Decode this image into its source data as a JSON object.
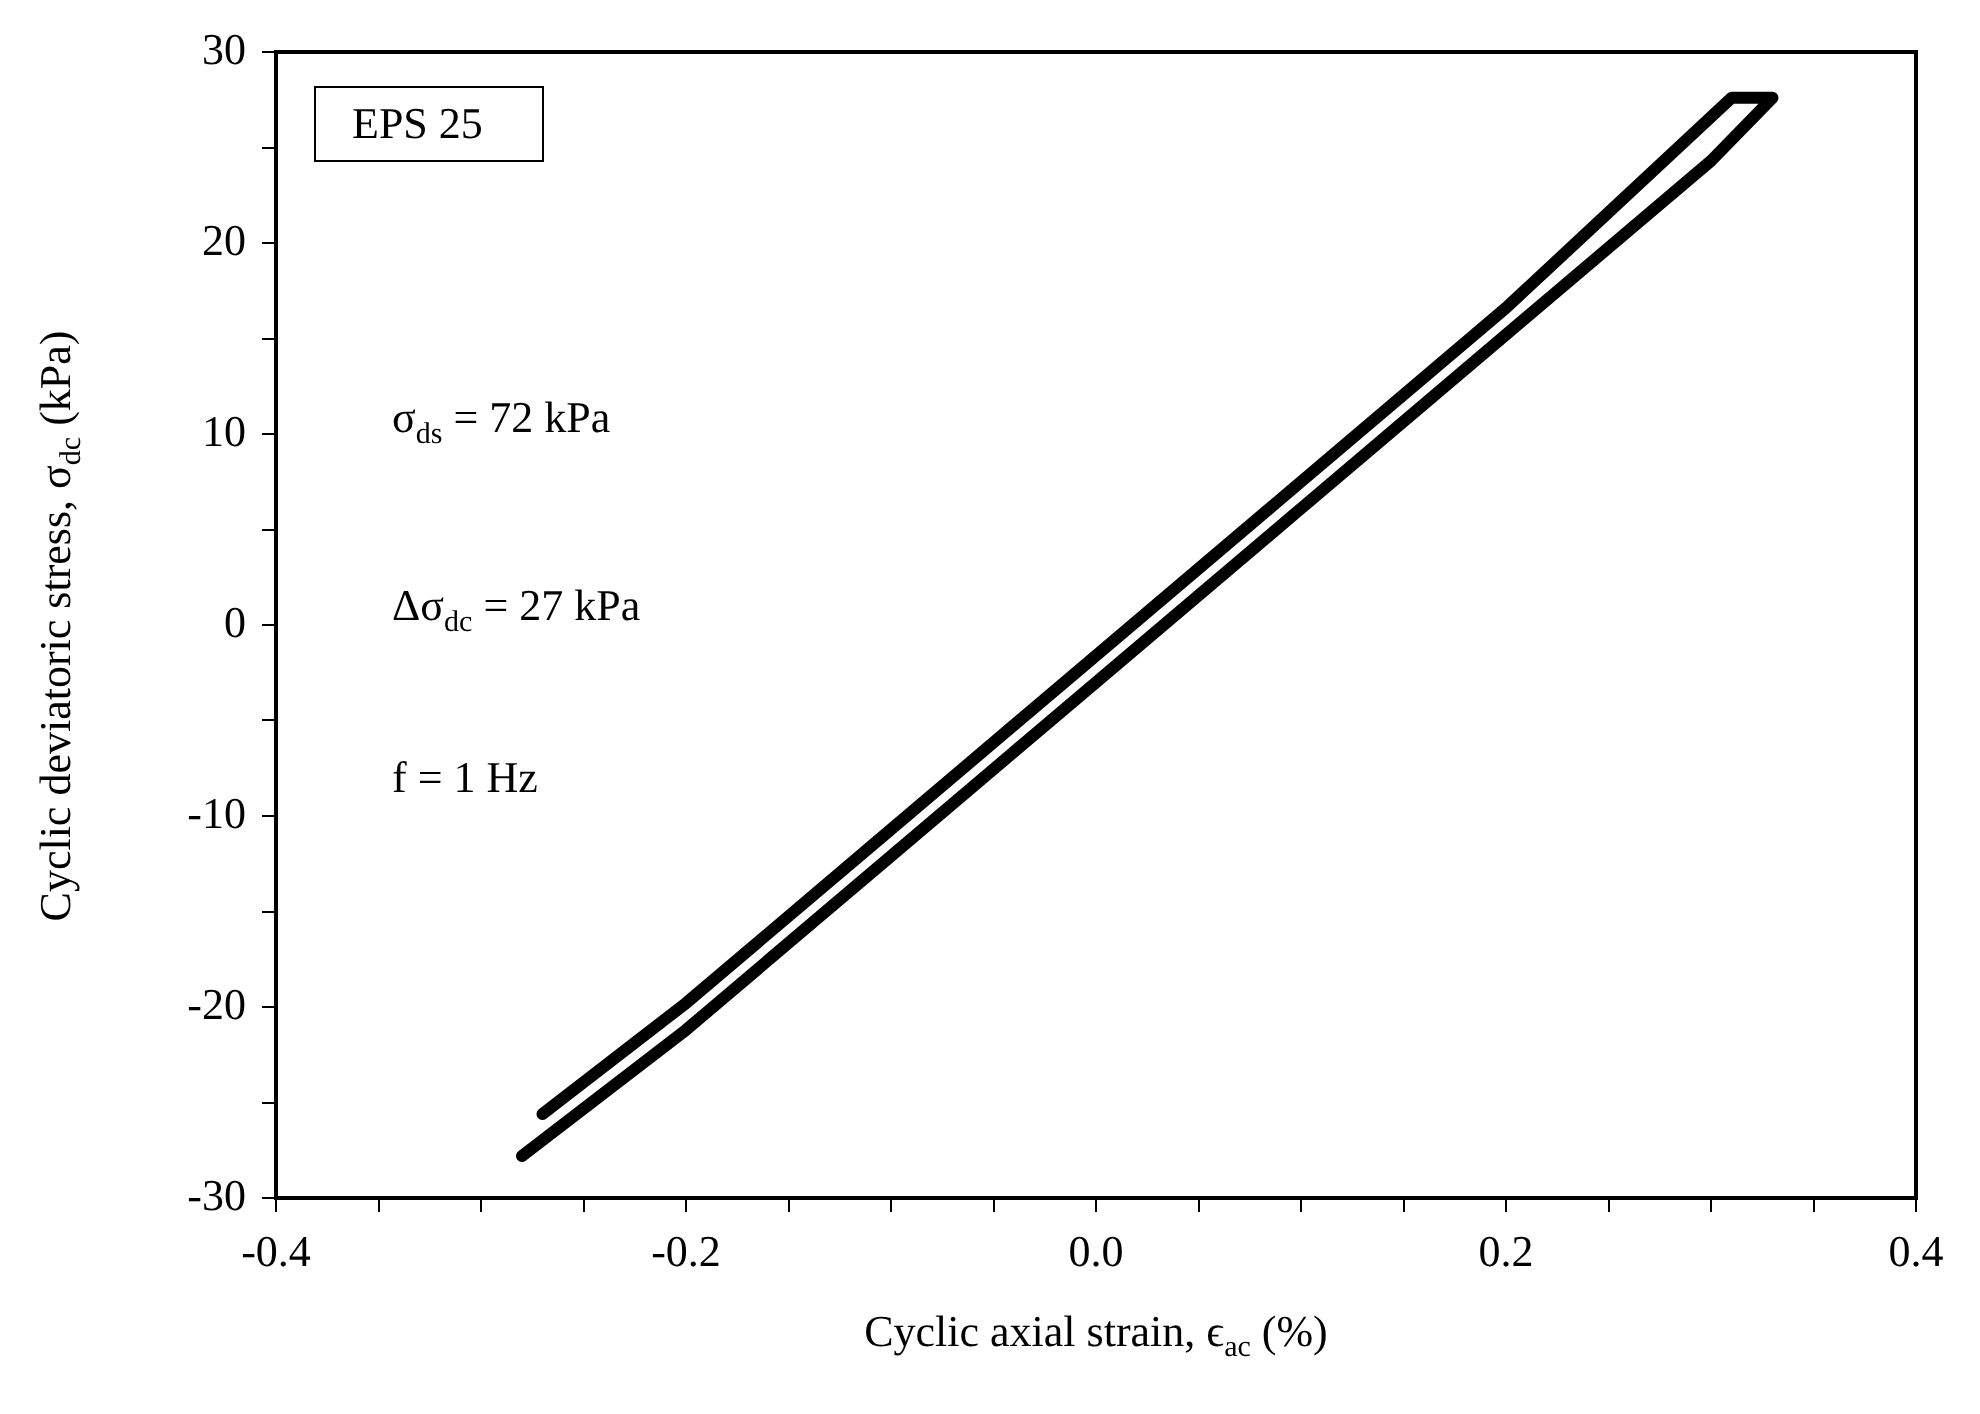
{
  "chart_data": {
    "type": "line",
    "xlabel": "Cyclic axial strain, ϵ$_{ac}$ (%)",
    "ylabel": "Cyclic deviatoric stress, σ$_{dc}$ (kPa)",
    "annotations": [
      "EPS 25",
      "σ$_{ds}$ = 72 kPa",
      "Δσ$_{dc}$ = 27 kPa",
      "f = 1 Hz"
    ],
    "series": [
      {
        "color": "#000000",
        "values": [
          -27.8,
          -21.2,
          -12.1,
          -3.0,
          6.1,
          15.2,
          24.3,
          27.6,
          27.6,
          16.6,
          7.5,
          -1.6,
          -10.7,
          -19.8,
          -25.6
        ]
      }
    ],
    "x": [
      -0.28,
      -0.2,
      -0.1,
      0,
      0.1,
      0.2,
      0.3,
      0.33,
      0.31,
      0.2,
      0.1,
      0,
      -0.1,
      -0.2,
      -0.27
    ],
    "xlim": [
      -0.4,
      0.4
    ],
    "xticks": [
      -0.4,
      {
        "value": -0.35,
        "label": null
      },
      {
        "value": -0.3,
        "label": null
      },
      {
        "value": -0.25,
        "label": null
      },
      -0.2,
      {
        "value": -0.15,
        "label": null
      },
      {
        "value": -0.1,
        "label": null
      },
      {
        "value": -0.05,
        "label": null
      },
      {
        "value": 0,
        "label": "0.0"
      },
      {
        "value": 0.05,
        "label": null
      },
      {
        "value": 0.1,
        "label": null
      },
      {
        "value": 0.15,
        "label": null
      },
      0.2,
      {
        "value": 0.25,
        "label": null
      },
      {
        "value": 0.3,
        "label": null
      },
      {
        "value": 0.35,
        "label": null
      },
      0.4
    ],
    "ylim": [
      -30,
      30
    ],
    "yticks": [
      -30,
      {
        "value": -25,
        "label": null
      },
      -20,
      {
        "value": -15,
        "label": null
      },
      -10,
      {
        "value": -5,
        "label": null
      },
      0,
      {
        "value": 5,
        "label": null
      },
      10,
      {
        "value": 15,
        "label": null
      },
      20,
      {
        "value": 25,
        "label": null
      },
      30
    ],
    "grid": false,
    "legend": false,
    "marker": "none",
    "line_style": "solid"
  }
}
